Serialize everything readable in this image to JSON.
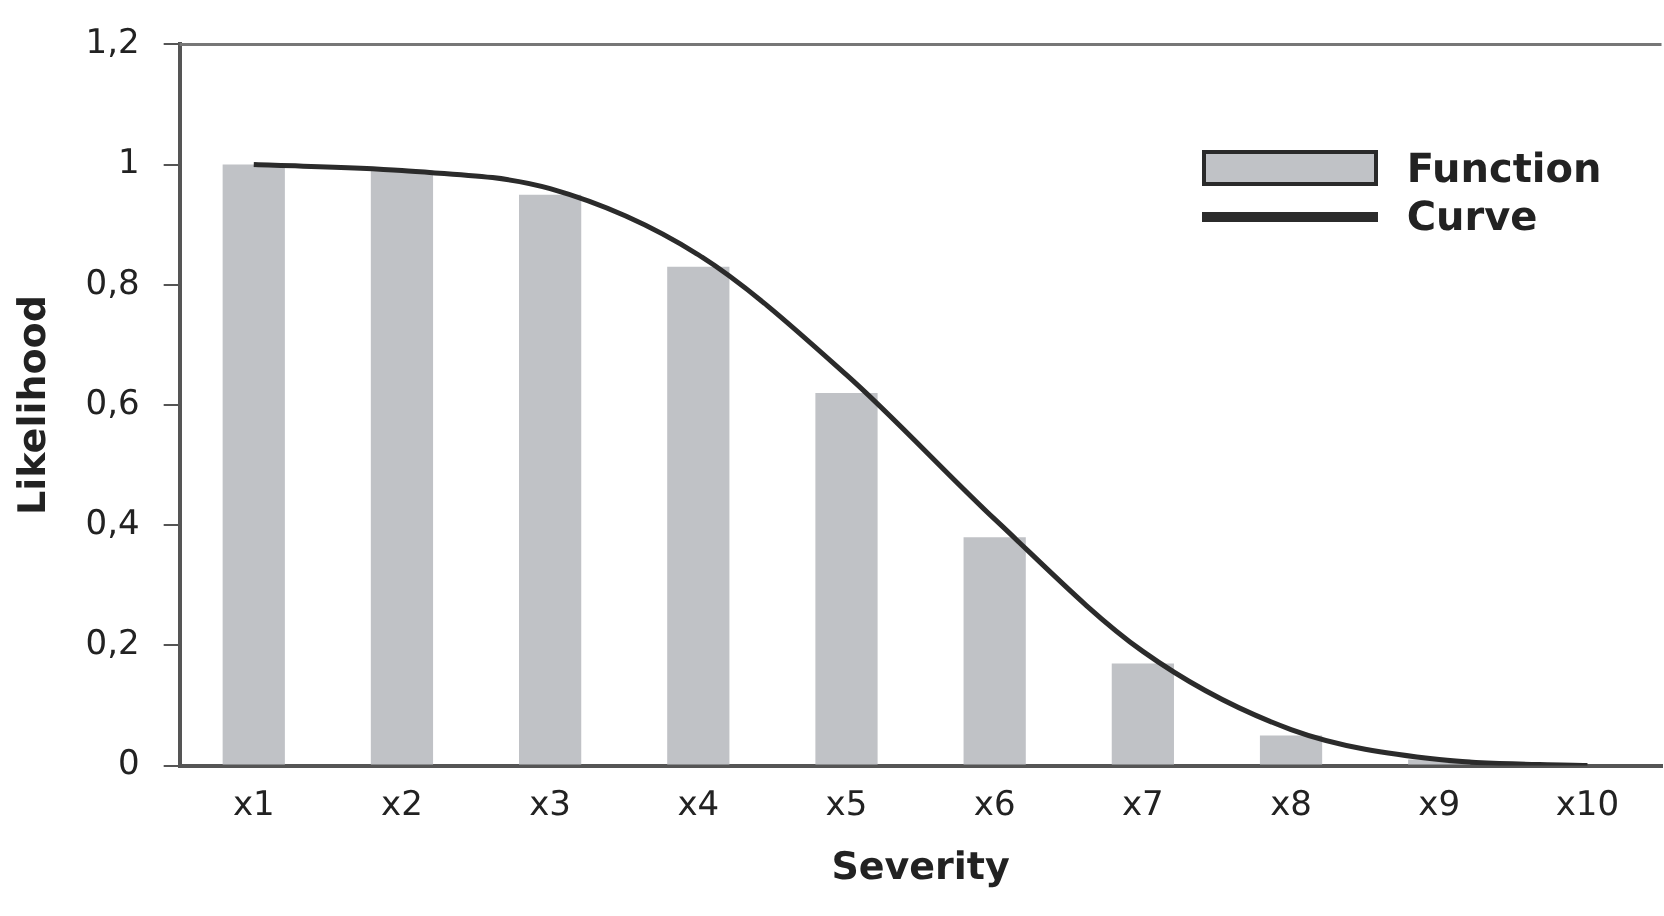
{
  "chart_data": {
    "type": "bar",
    "xlabel": "Severity",
    "ylabel": "Likelihood",
    "categories": [
      "x1",
      "x2",
      "x3",
      "x4",
      "x5",
      "x6",
      "x7",
      "x8",
      "x9",
      "x10"
    ],
    "series": [
      {
        "name": "Function",
        "color": "#c0c2c6",
        "values": [
          1.0,
          0.99,
          0.95,
          0.83,
          0.62,
          0.38,
          0.17,
          0.05,
          0.01,
          0
        ]
      },
      {
        "name": "Curve",
        "type": "line",
        "color": "#2b2b2b",
        "values": [
          1.0,
          0.99,
          0.96,
          0.85,
          0.65,
          0.41,
          0.19,
          0.06,
          0.01,
          0
        ]
      }
    ],
    "ylim": [
      0,
      1.2
    ],
    "yticks": [
      0,
      {
        "value": 0.2,
        "label": "0,2"
      },
      {
        "value": 0.4,
        "label": "0,4"
      },
      {
        "value": 0.6,
        "label": "0,6"
      },
      {
        "value": 0.8,
        "label": "0,8"
      },
      1,
      {
        "value": 1.2,
        "label": "1,2"
      }
    ],
    "legend": "top right",
    "marker": "none",
    "grid": false
  }
}
